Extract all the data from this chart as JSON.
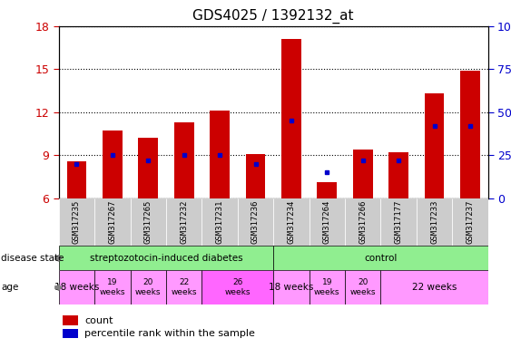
{
  "title": "GDS4025 / 1392132_at",
  "samples": [
    "GSM317235",
    "GSM317267",
    "GSM317265",
    "GSM317232",
    "GSM317231",
    "GSM317236",
    "GSM317234",
    "GSM317264",
    "GSM317266",
    "GSM317177",
    "GSM317233",
    "GSM317237"
  ],
  "counts": [
    8.6,
    10.7,
    10.2,
    11.3,
    12.1,
    9.1,
    17.1,
    7.1,
    9.4,
    9.2,
    13.3,
    14.9
  ],
  "percentiles": [
    20,
    25,
    22,
    25,
    25,
    20,
    45,
    15,
    22,
    22,
    42,
    42
  ],
  "ymin": 6,
  "ymax": 18,
  "yticks": [
    6,
    9,
    12,
    15,
    18
  ],
  "right_yticks": [
    0,
    25,
    50,
    75,
    100
  ],
  "bar_color": "#CC0000",
  "dot_color": "#0000CC",
  "tick_color_left": "#CC0000",
  "tick_color_right": "#0000CC",
  "grid_color": "black",
  "label_gray": "#CCCCCC",
  "green_light": "#90EE90",
  "pink_light": "#FF99FF",
  "pink_dark": "#FF66FF",
  "age_streptozotocin": [
    {
      "label": "18 weeks",
      "span": 1,
      "dark": false
    },
    {
      "label": "19\nweeks",
      "span": 1,
      "dark": false
    },
    {
      "label": "20\nweeks",
      "span": 1,
      "dark": false
    },
    {
      "label": "22\nweeks",
      "span": 1,
      "dark": false
    },
    {
      "label": "26\nweeks",
      "span": 2,
      "dark": true
    }
  ],
  "age_control": [
    {
      "label": "18 weeks",
      "span": 1,
      "dark": false
    },
    {
      "label": "19\nweeks",
      "span": 1,
      "dark": false
    },
    {
      "label": "20\nweeks",
      "span": 1,
      "dark": false
    },
    {
      "label": "22 weeks",
      "span": 3,
      "dark": false
    }
  ]
}
